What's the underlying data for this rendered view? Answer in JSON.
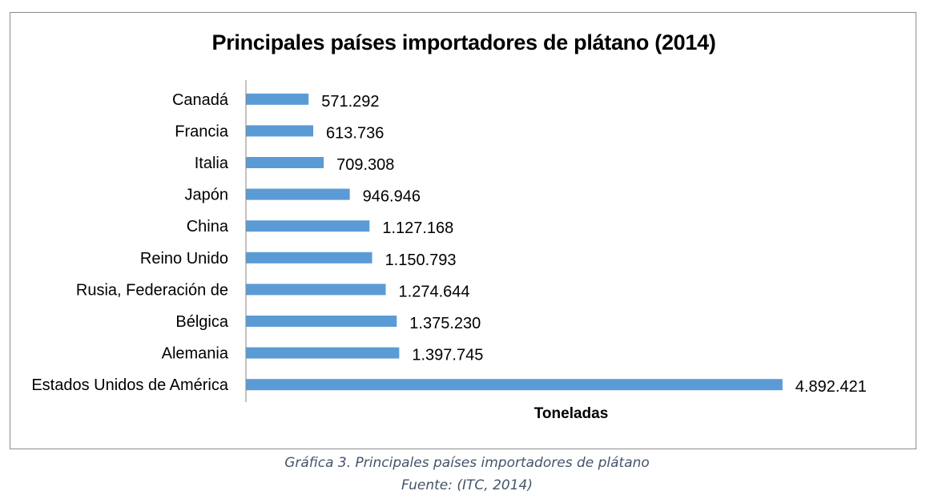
{
  "chart_data": {
    "type": "bar",
    "orientation": "horizontal",
    "title": "Principales países importadores de plátano (2014)",
    "xlabel": "Toneladas",
    "ylabel": "",
    "categories": [
      "Canadá",
      "Francia",
      "Italia",
      "Japón",
      "China",
      "Reino Unido",
      "Rusia, Federación de",
      "Bélgica",
      "Alemania",
      "Estados Unidos de América"
    ],
    "values": [
      571292,
      613736,
      709308,
      946946,
      1127168,
      1150793,
      1274644,
      1375230,
      1397745,
      4892421
    ],
    "value_labels": [
      "571.292",
      "613.736",
      "709.308",
      "946.946",
      "1.127.168",
      "1.150.793",
      "1.274.644",
      "1.375.230",
      "1.397.745",
      "4.892.421"
    ],
    "xlim": [
      0,
      5200000
    ],
    "grid": false,
    "legend": "none",
    "bar_color": "#5b9bd5",
    "axis_color": "#868686"
  },
  "caption": {
    "line1": "Gráfica 3. Principales países importadores de plátano",
    "line2": "Fuente: (ITC, 2014)"
  }
}
